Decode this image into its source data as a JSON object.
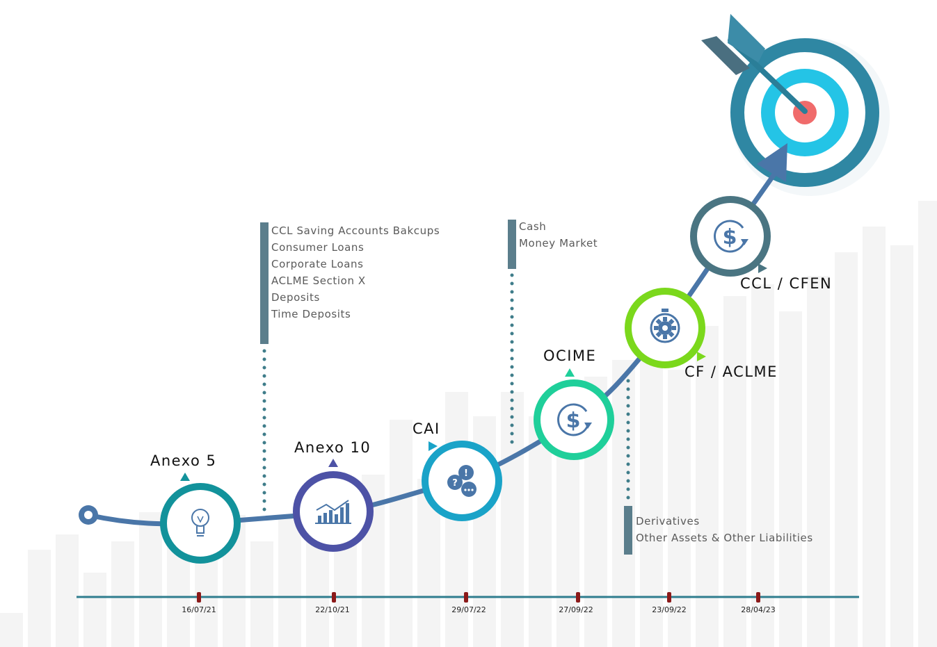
{
  "dates": [
    "16/07/21",
    "22/10/21",
    "29/07/22",
    "27/09/22",
    "23/09/22",
    "28/04/23"
  ],
  "milestones": [
    {
      "label": "Anexo 5",
      "icon": "lightbulb-icon",
      "color": "#12929b"
    },
    {
      "label": "Anexo 10",
      "icon": "bar-chart-icon",
      "color": "#4d52a6"
    },
    {
      "label": "CAI",
      "icon": "chat-bubbles-icon",
      "color": "#1aa3c8"
    },
    {
      "label": "OCIME",
      "icon": "dollar-cycle-icon",
      "color": "#1fcf9a"
    },
    {
      "label": "CF / ACLME",
      "icon": "gear-stopwatch-icon",
      "color": "#7bd81c"
    },
    {
      "label": "CCL / CFEN",
      "icon": "dollar-cycle-icon",
      "color": "#4a7582"
    }
  ],
  "notes": {
    "group1": [
      "CCL Saving Accounts Bakcups",
      "Consumer Loans",
      "Corporate Loans",
      "ACLME Section X",
      "Deposits",
      "Time Deposits"
    ],
    "group2": [
      "Cash",
      "Money Market"
    ],
    "group3": [
      "Derivatives",
      "Other Assets & Other Liabilities"
    ]
  },
  "colors": {
    "path": "#4a76a8",
    "axis": "#2f7d8e",
    "tick": "#8b1a1a",
    "note_bar": "#5b7e8c",
    "target_outer": "#2e8fa8",
    "target_mid": "#1fc3e3",
    "target_center": "#f06b6b"
  }
}
